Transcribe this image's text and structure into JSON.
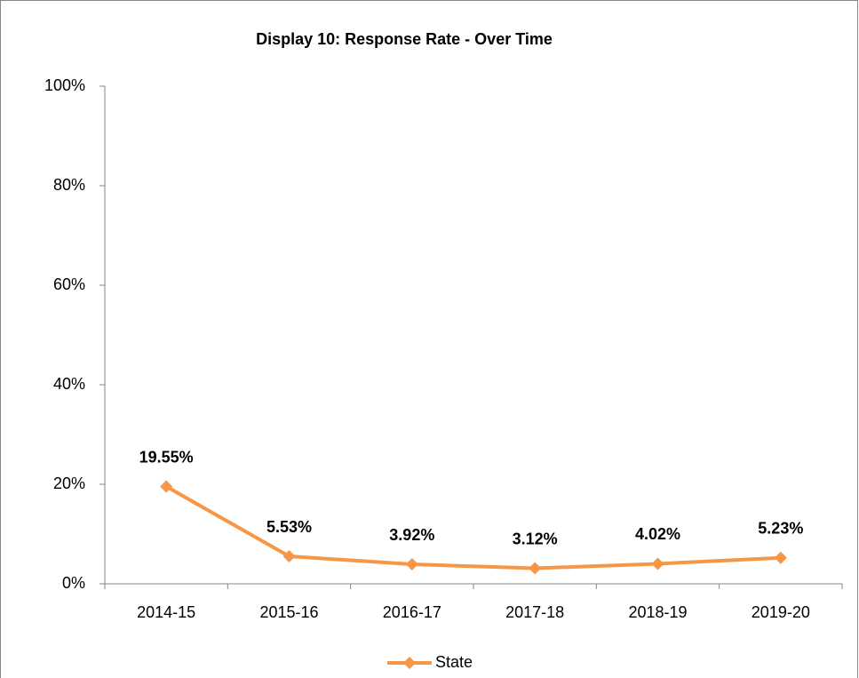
{
  "chart_data": {
    "type": "line",
    "title": "Display 10: Response Rate - Over Time",
    "categories": [
      "2014-15",
      "2015-16",
      "2016-17",
      "2017-18",
      "2018-19",
      "2019-20"
    ],
    "series": [
      {
        "name": "State",
        "color": "#f79646",
        "values": [
          19.55,
          5.53,
          3.92,
          3.12,
          4.02,
          5.23
        ],
        "value_labels": [
          "19.55%",
          "5.53%",
          "3.92%",
          "3.12%",
          "4.02%",
          "5.23%"
        ]
      }
    ],
    "ylim": [
      0,
      100
    ],
    "yticks": [
      {
        "value": 0,
        "label": "0%"
      },
      {
        "value": 20,
        "label": "20%"
      },
      {
        "value": 40,
        "label": "40%"
      },
      {
        "value": 60,
        "label": "60%"
      },
      {
        "value": 80,
        "label": "80%"
      },
      {
        "value": 100,
        "label": "100%"
      }
    ],
    "grid": false,
    "legend": "bottom"
  }
}
